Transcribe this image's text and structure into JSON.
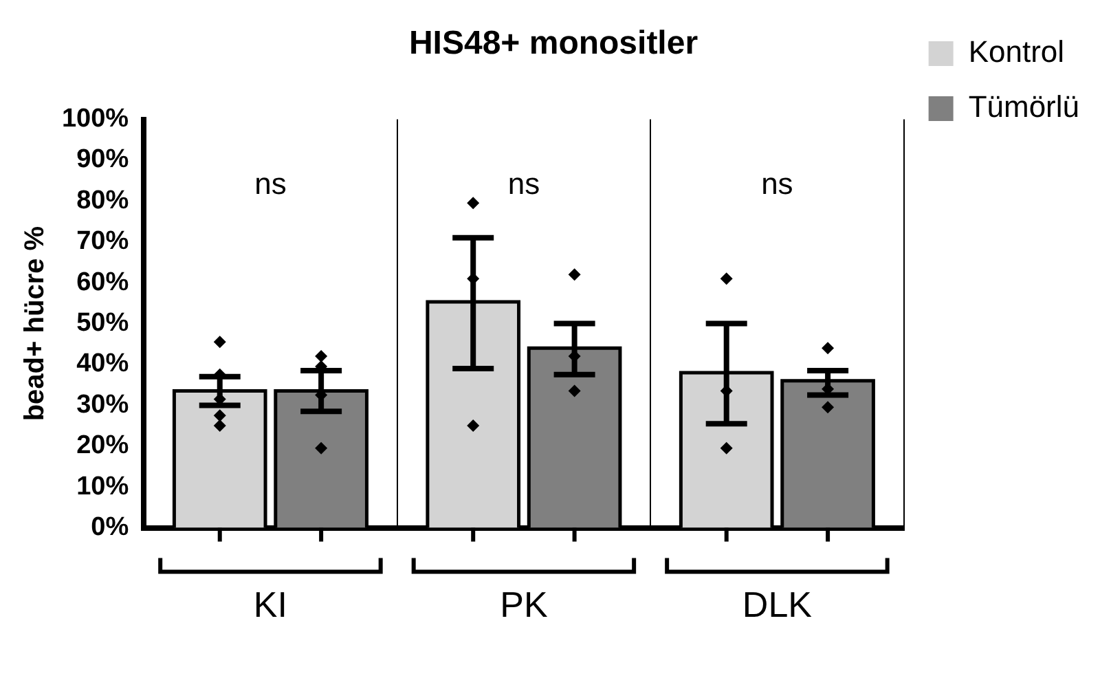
{
  "chart_data": {
    "type": "bar",
    "title": "HIS48+ monositler",
    "ylabel": "bead+ hücre %",
    "categories": [
      "KI",
      "PK",
      "DLK"
    ],
    "series": [
      {
        "name": "Kontrol",
        "color": "#d3d3d3",
        "values": [
          33.5,
          55.3,
          38
        ],
        "errors": [
          [
            30,
            37
          ],
          [
            39,
            71
          ],
          [
            25.5,
            50
          ]
        ]
      },
      {
        "name": "Tümörlü",
        "color": "#808080",
        "values": [
          33.5,
          44,
          36
        ],
        "errors": [
          [
            28.5,
            38.5
          ],
          [
            37.5,
            50
          ],
          [
            32.5,
            38.5
          ]
        ]
      },
      {
        "type": "scatter",
        "color": "#000000",
        "x": [
          "KI",
          "KI",
          "KI",
          "KI",
          "KI",
          "PK",
          "PK",
          "PK",
          "DLK",
          "DLK",
          "DLK"
        ],
        "values": [
          45.5,
          37.5,
          31.5,
          27.5,
          25,
          79.5,
          61,
          25,
          61,
          33.5,
          19.5
        ]
      },
      {
        "type": "scatter",
        "color": "#000000",
        "x": [
          "KI",
          "KI",
          "KI",
          "KI",
          "PK",
          "PK",
          "PK",
          "DLK",
          "DLK",
          "DLK"
        ],
        "values": [
          42,
          39.5,
          32.5,
          19.5,
          62,
          42,
          33.5,
          44,
          34,
          29.5
        ]
      }
    ],
    "ylim": [
      0,
      100
    ],
    "yticks": [
      {
        "value": 0,
        "label": "0%"
      },
      {
        "value": 10,
        "label": "10%"
      },
      {
        "value": 20,
        "label": "20%"
      },
      {
        "value": 30,
        "label": "30%"
      },
      {
        "value": 40,
        "label": "40%"
      },
      {
        "value": 50,
        "label": "50%"
      },
      {
        "value": 60,
        "label": "60%"
      },
      {
        "value": 70,
        "label": "70%"
      },
      {
        "value": 80,
        "label": "80%"
      },
      {
        "value": 90,
        "label": "90%"
      },
      {
        "value": 100,
        "label": "100%"
      }
    ],
    "annotations": [
      "ns",
      "ns",
      "ns"
    ],
    "grid": "x",
    "legend": "top right",
    "marker": "diamond"
  }
}
